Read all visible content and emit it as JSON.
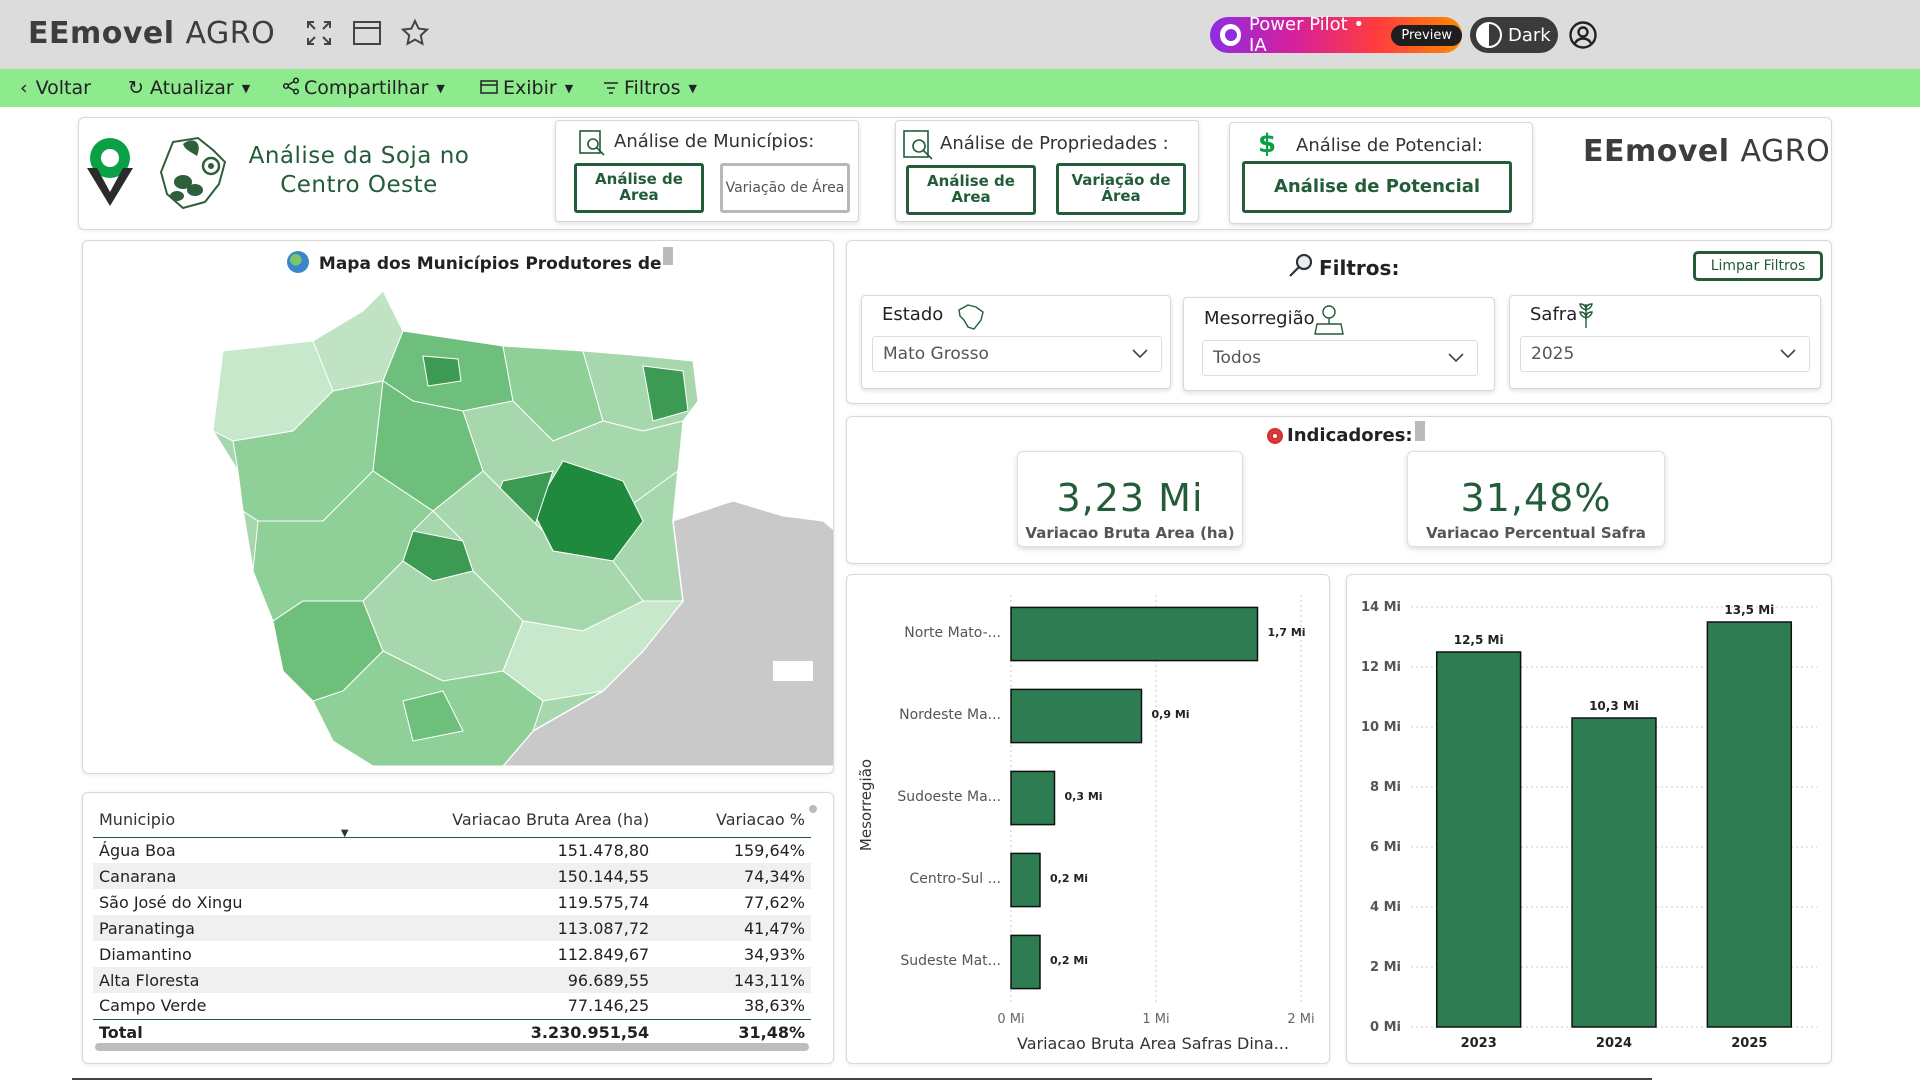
{
  "app": {
    "logo_main": "EEmovel",
    "logo_sub": "AGRO",
    "power_pilot": "Power Pilot • IA",
    "preview_badge": "Preview",
    "dark_label": "Dark"
  },
  "menu": {
    "back": "Voltar",
    "refresh": "Atualizar",
    "share": "Compartilhar",
    "view": "Exibir",
    "filters": "Filtros"
  },
  "header": {
    "title_line1": "Análise da Soja no",
    "title_line2": "Centro Oeste",
    "municipios": {
      "title": "Análise de Municípios:",
      "btn_area": "Análise de Area",
      "btn_var": "Variação de Área"
    },
    "propriedades": {
      "title": "Análise de Propriedades :",
      "btn_area": "Análise de Area",
      "btn_var": "Variação de Área"
    },
    "potencial": {
      "title": "Análise de Potencial:",
      "btn": "Análise de Potencial"
    },
    "brand_main": "EEmovel",
    "brand_sub": "AGRO"
  },
  "map": {
    "title": "Mapa dos Municípios Produtores de"
  },
  "filters": {
    "title": "Filtros:",
    "clear": "Limpar Filtros",
    "estado": {
      "label": "Estado",
      "value": "Mato Grosso"
    },
    "mesorregiao": {
      "label": "Mesorregião",
      "value": "Todos"
    },
    "safra": {
      "label": "Safra",
      "value": "2025"
    }
  },
  "indicators": {
    "title": "Indicadores:",
    "kpi1": {
      "value": "3,23 Mi",
      "label": "Variacao Bruta Area (ha)"
    },
    "kpi2": {
      "value": "31,48%",
      "label": "Variacao Percentual Safra"
    }
  },
  "table": {
    "headers": [
      "Municipio",
      "Variacao Bruta Area (ha)",
      "Variacao %"
    ],
    "rows": [
      [
        "Água Boa",
        "151.478,80",
        "159,64%"
      ],
      [
        "Canarana",
        "150.144,55",
        "74,34%"
      ],
      [
        "São José do Xingu",
        "119.575,74",
        "77,62%"
      ],
      [
        "Paranatinga",
        "113.087,72",
        "41,47%"
      ],
      [
        "Diamantino",
        "112.849,67",
        "34,93%"
      ],
      [
        "Alta Floresta",
        "96.689,55",
        "143,11%"
      ],
      [
        "Campo Verde",
        "77.146,25",
        "38,63%"
      ]
    ],
    "total": [
      "Total",
      "3.230.951,54",
      "31,48%"
    ]
  },
  "chart_data": [
    {
      "type": "bar",
      "orientation": "horizontal",
      "title": "",
      "xlabel": "Variacao Bruta Area Safras Dina...",
      "ylabel": "Mesorregião",
      "categories": [
        "Norte Mato-...",
        "Nordeste Ma...",
        "Sudoeste Ma...",
        "Centro-Sul ...",
        "Sudeste Mat..."
      ],
      "values": [
        1.7,
        0.9,
        0.3,
        0.2,
        0.2
      ],
      "data_labels": [
        "1,7 Mi",
        "0,9 Mi",
        "0,3 Mi",
        "0,2 Mi",
        "0,2 Mi"
      ],
      "xlim": [
        0,
        2
      ],
      "xticks": [
        "0 Mi",
        "1 Mi",
        "2 Mi"
      ],
      "color": "#2e7d52"
    },
    {
      "type": "bar",
      "orientation": "vertical",
      "title": "",
      "categories": [
        "2023",
        "2024",
        "2025"
      ],
      "values": [
        12.5,
        10.3,
        13.5
      ],
      "data_labels": [
        "12,5 Mi",
        "10,3 Mi",
        "13,5 Mi"
      ],
      "ylim": [
        0,
        14
      ],
      "yticks": [
        "0 Mi",
        "2 Mi",
        "4 Mi",
        "6 Mi",
        "8 Mi",
        "10 Mi",
        "12 Mi",
        "14 Mi"
      ],
      "color": "#2e7d52"
    }
  ]
}
